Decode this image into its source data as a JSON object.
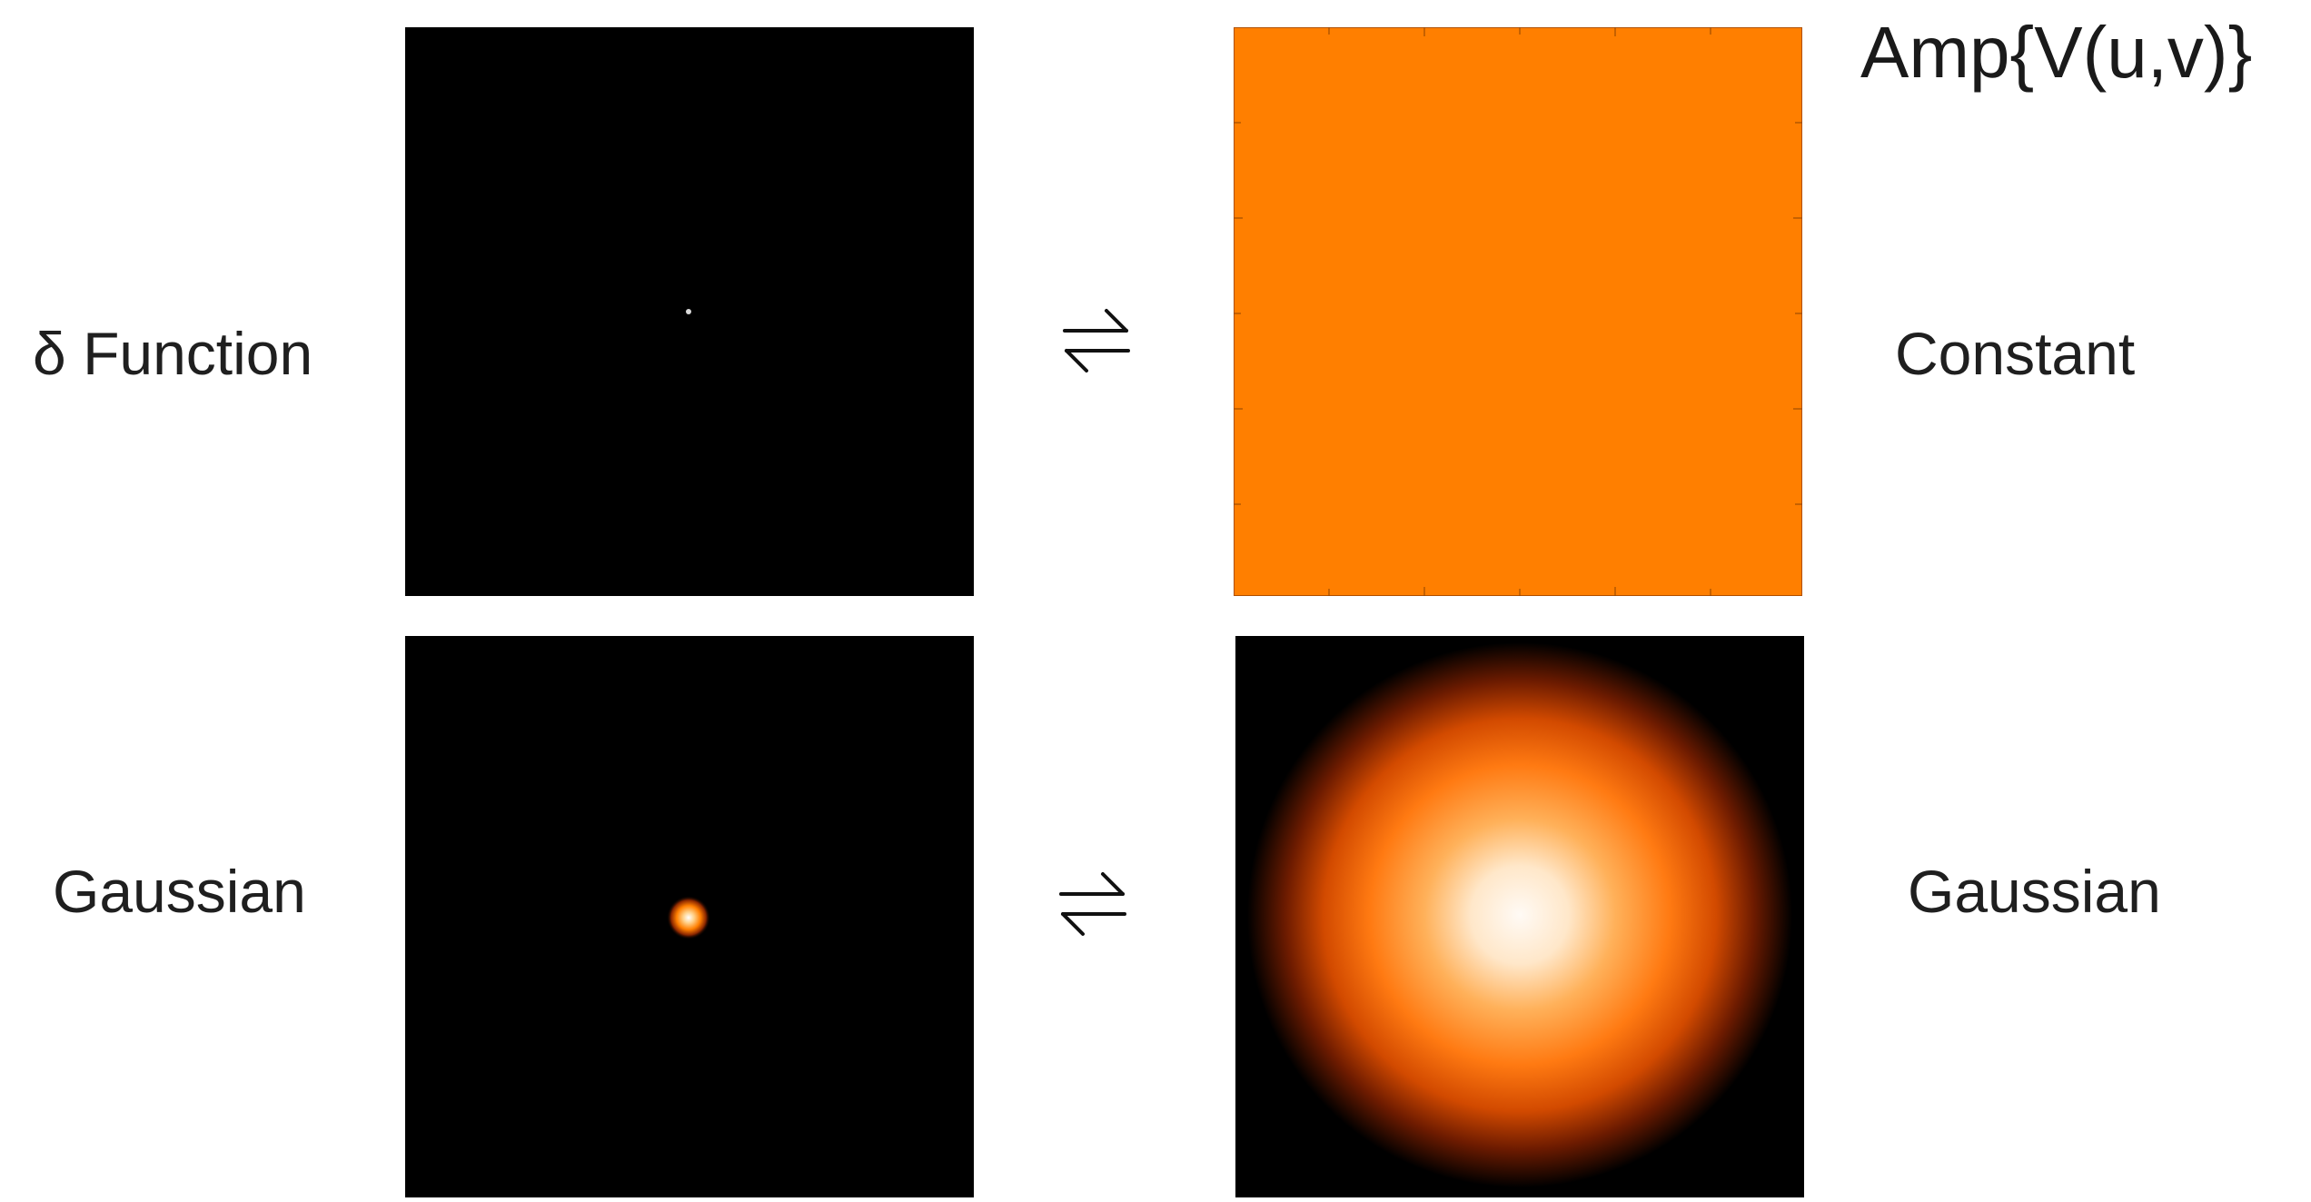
{
  "header": {
    "title": "Amp{V(u,v)}"
  },
  "rows": [
    {
      "left_label": "δ Function",
      "right_label": "Constant",
      "left_image": "delta-point-image",
      "right_image": "constant-orange-image"
    },
    {
      "left_label": "Gaussian",
      "right_label": "Gaussian",
      "left_image": "small-gaussian-image",
      "right_image": "large-gaussian-image"
    }
  ],
  "icons": {
    "transform_pair": "left-right-harpoons-icon"
  },
  "colors": {
    "background": "#000000",
    "constant_fill": "#ff7f00",
    "gaussian_core": "#fff8f0",
    "gaussian_mid": "#ffa640",
    "gaussian_outer": "#d24a00"
  }
}
